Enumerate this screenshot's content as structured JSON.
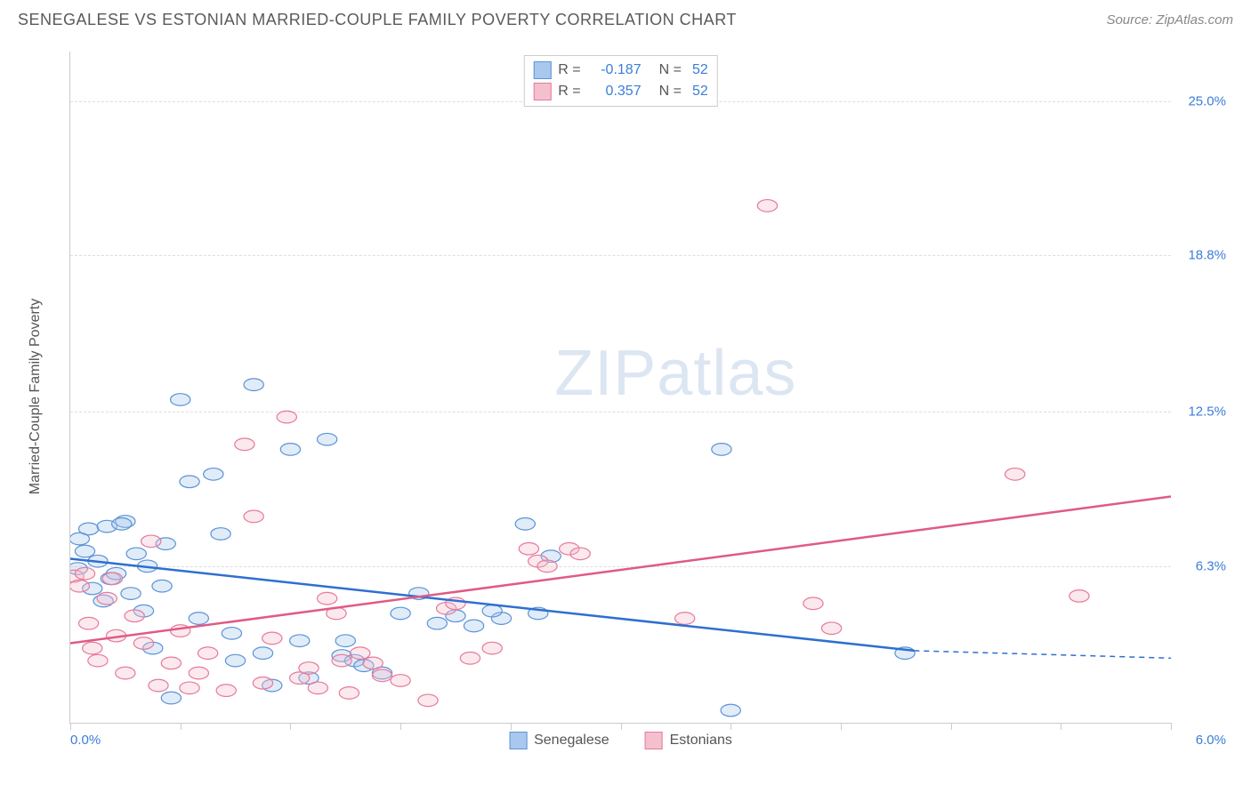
{
  "header": {
    "title": "SENEGALESE VS ESTONIAN MARRIED-COUPLE FAMILY POVERTY CORRELATION CHART",
    "source": "Source: ZipAtlas.com"
  },
  "chart": {
    "type": "scatter",
    "y_axis_label": "Married-Couple Family Poverty",
    "watermark_bold": "ZIP",
    "watermark_light": "atlas",
    "x_range": [
      0.0,
      6.0
    ],
    "y_range": [
      0.0,
      27.0
    ],
    "x_left_label": "0.0%",
    "x_left_color": "#3b7dd8",
    "x_right_label": "6.0%",
    "x_right_color": "#3b7dd8",
    "x_ticks": [
      0.0,
      0.6,
      1.2,
      1.8,
      2.4,
      3.0,
      3.6,
      4.2,
      4.8,
      5.4,
      6.0
    ],
    "y_gridlines": [
      {
        "value": 6.3,
        "label": "6.3%",
        "color": "#3b7dd8"
      },
      {
        "value": 12.5,
        "label": "12.5%",
        "color": "#3b7dd8"
      },
      {
        "value": 18.8,
        "label": "18.8%",
        "color": "#3b7dd8"
      },
      {
        "value": 25.0,
        "label": "25.0%",
        "color": "#3b7dd8"
      }
    ],
    "grid_color": "#dddddd",
    "axis_color": "#cccccc",
    "background_color": "#ffffff",
    "marker_radius": 9,
    "marker_stroke_width": 1.2,
    "marker_fill_opacity": 0.35,
    "line_width": 2.5,
    "legend_top": [
      {
        "swatch_fill": "#a9c8ef",
        "swatch_stroke": "#5b94d6",
        "r_label": "R =",
        "r_value": "-0.187",
        "n_label": "N =",
        "n_value": "52"
      },
      {
        "swatch_fill": "#f4c0cd",
        "swatch_stroke": "#e77a9c",
        "r_label": "R =",
        "r_value": "0.357",
        "n_label": "N =",
        "n_value": "52"
      }
    ],
    "legend_bottom": [
      {
        "swatch_fill": "#a9c8ef",
        "swatch_stroke": "#5b94d6",
        "label": "Senegalese"
      },
      {
        "swatch_fill": "#f4c0cd",
        "swatch_stroke": "#e77a9c",
        "label": "Estonians"
      }
    ],
    "series": [
      {
        "name": "Senegalese",
        "marker_fill": "#a9c8ef",
        "marker_stroke": "#5b94d6",
        "trend_color": "#2e6fd0",
        "trend_start": [
          0.0,
          6.6
        ],
        "trend_end_solid": [
          4.6,
          2.9
        ],
        "trend_end_dashed": [
          6.0,
          2.6
        ],
        "points": [
          [
            0.04,
            6.2
          ],
          [
            0.05,
            7.4
          ],
          [
            0.08,
            6.9
          ],
          [
            0.1,
            7.8
          ],
          [
            0.12,
            5.4
          ],
          [
            0.15,
            6.5
          ],
          [
            0.18,
            4.9
          ],
          [
            0.2,
            7.9
          ],
          [
            0.22,
            5.8
          ],
          [
            0.25,
            6.0
          ],
          [
            0.3,
            8.1
          ],
          [
            0.33,
            5.2
          ],
          [
            0.36,
            6.8
          ],
          [
            0.4,
            4.5
          ],
          [
            0.45,
            3.0
          ],
          [
            0.5,
            5.5
          ],
          [
            0.55,
            1.0
          ],
          [
            0.6,
            13.0
          ],
          [
            0.65,
            9.7
          ],
          [
            0.7,
            4.2
          ],
          [
            0.78,
            10.0
          ],
          [
            0.82,
            7.6
          ],
          [
            0.9,
            2.5
          ],
          [
            1.0,
            13.6
          ],
          [
            1.05,
            2.8
          ],
          [
            1.1,
            1.5
          ],
          [
            1.2,
            11.0
          ],
          [
            1.3,
            1.8
          ],
          [
            1.4,
            11.4
          ],
          [
            1.48,
            2.7
          ],
          [
            1.55,
            2.5
          ],
          [
            1.6,
            2.3
          ],
          [
            1.7,
            2.0
          ],
          [
            1.8,
            4.4
          ],
          [
            1.9,
            5.2
          ],
          [
            2.0,
            4.0
          ],
          [
            2.1,
            4.3
          ],
          [
            2.2,
            3.9
          ],
          [
            2.35,
            4.2
          ],
          [
            2.48,
            8.0
          ],
          [
            2.55,
            4.4
          ],
          [
            2.62,
            6.7
          ],
          [
            3.55,
            11.0
          ],
          [
            3.6,
            0.5
          ],
          [
            4.55,
            2.8
          ],
          [
            0.28,
            8.0
          ],
          [
            0.42,
            6.3
          ],
          [
            0.52,
            7.2
          ],
          [
            0.88,
            3.6
          ],
          [
            1.25,
            3.3
          ],
          [
            1.5,
            3.3
          ],
          [
            2.3,
            4.5
          ]
        ]
      },
      {
        "name": "Estonians",
        "marker_fill": "#f4c0cd",
        "marker_stroke": "#e77a9c",
        "trend_color": "#e05a84",
        "trend_start": [
          0.0,
          3.2
        ],
        "trend_end_solid": [
          6.0,
          9.1
        ],
        "trend_end_dashed": null,
        "points": [
          [
            0.02,
            5.9
          ],
          [
            0.05,
            5.5
          ],
          [
            0.1,
            4.0
          ],
          [
            0.12,
            3.0
          ],
          [
            0.15,
            2.5
          ],
          [
            0.2,
            5.0
          ],
          [
            0.25,
            3.5
          ],
          [
            0.3,
            2.0
          ],
          [
            0.35,
            4.3
          ],
          [
            0.4,
            3.2
          ],
          [
            0.48,
            1.5
          ],
          [
            0.55,
            2.4
          ],
          [
            0.6,
            3.7
          ],
          [
            0.65,
            1.4
          ],
          [
            0.75,
            2.8
          ],
          [
            0.85,
            1.3
          ],
          [
            0.95,
            11.2
          ],
          [
            1.0,
            8.3
          ],
          [
            1.05,
            1.6
          ],
          [
            1.1,
            3.4
          ],
          [
            1.18,
            12.3
          ],
          [
            1.25,
            1.8
          ],
          [
            1.3,
            2.2
          ],
          [
            1.4,
            5.0
          ],
          [
            1.45,
            4.4
          ],
          [
            1.48,
            2.5
          ],
          [
            1.52,
            1.2
          ],
          [
            1.58,
            2.8
          ],
          [
            1.7,
            1.9
          ],
          [
            1.8,
            1.7
          ],
          [
            1.95,
            0.9
          ],
          [
            2.05,
            4.6
          ],
          [
            2.1,
            4.8
          ],
          [
            2.18,
            2.6
          ],
          [
            2.5,
            7.0
          ],
          [
            2.55,
            6.5
          ],
          [
            2.6,
            6.3
          ],
          [
            2.72,
            7.0
          ],
          [
            2.78,
            6.8
          ],
          [
            3.35,
            4.2
          ],
          [
            3.8,
            20.8
          ],
          [
            4.05,
            4.8
          ],
          [
            4.15,
            3.8
          ],
          [
            5.15,
            10.0
          ],
          [
            5.5,
            5.1
          ],
          [
            0.08,
            6.0
          ],
          [
            0.23,
            5.8
          ],
          [
            0.44,
            7.3
          ],
          [
            0.7,
            2.0
          ],
          [
            1.35,
            1.4
          ],
          [
            1.65,
            2.4
          ],
          [
            2.3,
            3.0
          ]
        ]
      }
    ]
  }
}
